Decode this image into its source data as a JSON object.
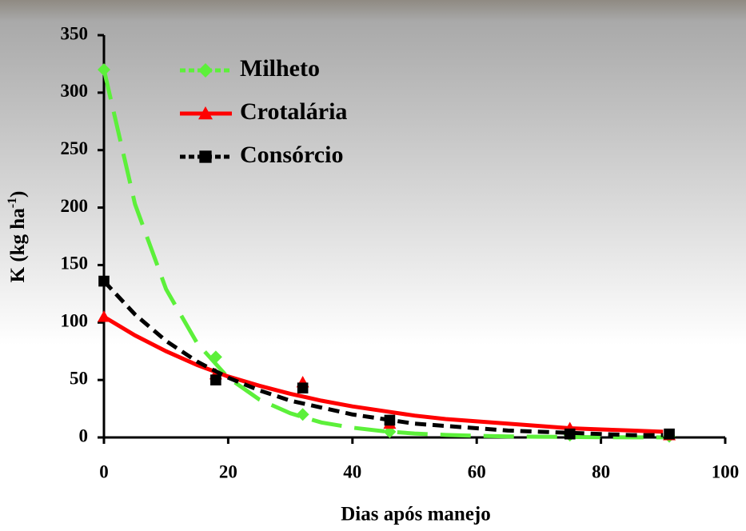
{
  "chart_data": {
    "type": "scatter",
    "xlabel": "Dias após manejo",
    "ylabel": "K (kg ha",
    "ylabel_sup": "-1",
    "ylabel_end": ")",
    "xlim": [
      0,
      100
    ],
    "xticks": [
      0,
      20,
      40,
      60,
      80,
      100
    ],
    "ylim": [
      0,
      350
    ],
    "yticks": [
      0,
      50,
      100,
      150,
      200,
      250,
      300,
      350
    ],
    "x": [
      0,
      18,
      32,
      46,
      75,
      91
    ],
    "fit_x": [
      0,
      5,
      10,
      15,
      20,
      25,
      30,
      35,
      40,
      45,
      50,
      55,
      60,
      65,
      70,
      75,
      80,
      85,
      90
    ],
    "series": [
      {
        "name": "Milheto",
        "color": "#5cf03a",
        "marker": "diamond",
        "dash": "38,16",
        "values": [
          320,
          70,
          20,
          5,
          2,
          1
        ],
        "fit": [
          320,
          203,
          129,
          82,
          52,
          33,
          21,
          13,
          8.5,
          5.4,
          3.4,
          2.2,
          1.4,
          0.9,
          0.6,
          0.4,
          0.2,
          0.1,
          0.1
        ]
      },
      {
        "name": "Crotalária",
        "color": "#ff0000",
        "marker": "triangle",
        "dash": "none",
        "values": [
          105,
          55,
          48,
          12,
          8,
          2
        ],
        "fit": [
          105,
          88.8,
          75,
          63,
          53,
          45,
          38,
          32,
          27,
          23,
          19,
          16,
          14,
          12,
          10,
          8,
          7,
          6,
          5
        ]
      },
      {
        "name": "Consórcio",
        "color": "#000000",
        "marker": "square",
        "dash": "14,8",
        "values": [
          136,
          50,
          43,
          15,
          3,
          3
        ],
        "fit": [
          136,
          107,
          84,
          66,
          52,
          41,
          32,
          26,
          20,
          16,
          12,
          10,
          8,
          6,
          5,
          4,
          3,
          2,
          2
        ]
      }
    ]
  }
}
